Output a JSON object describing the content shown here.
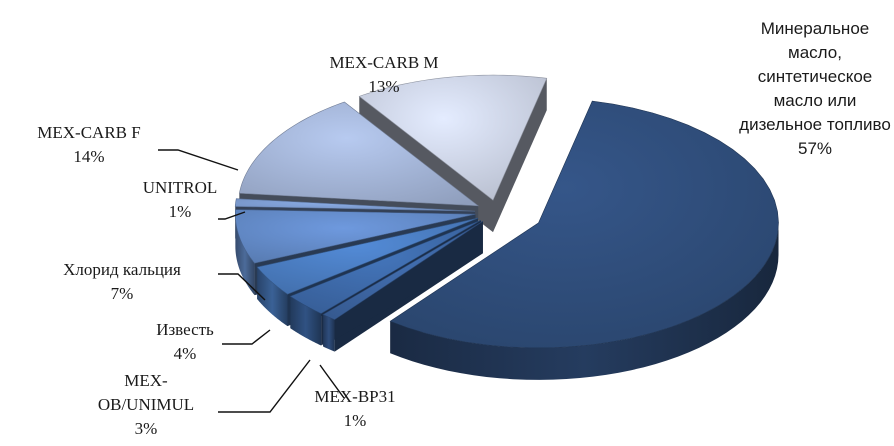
{
  "chart_data": {
    "type": "pie",
    "title": "",
    "categories": [
      "Минеральное масло, синтетическое масло или дизельное топливо",
      "MEX-BP31",
      "MEX-OB/UNIMUL",
      "Известь",
      "Хлорид кальция",
      "UNITROL",
      "MEX-CARB F",
      "MEX-CARB M"
    ],
    "values": [
      57,
      1,
      3,
      4,
      7,
      1,
      14,
      13
    ],
    "value_labels": [
      "57%",
      "1%",
      "3%",
      "4%",
      "7%",
      "1%",
      "14%",
      "13%"
    ],
    "label_lines": [
      [
        "Минеральное",
        "масло,",
        "синтетическое",
        "масло или",
        "дизельное топливо"
      ],
      [
        "MEX-BP31"
      ],
      [
        "MEX-",
        "OB/UNIMUL"
      ],
      [
        "Известь"
      ],
      [
        "Хлорид кальция"
      ],
      [
        "UNITROL"
      ],
      [
        "MEX-CARB  F"
      ],
      [
        "MEX-CARB  M"
      ]
    ],
    "colors": [
      "#2f4d7a",
      "#3c64a0",
      "#3d69a8",
      "#4a7cc0",
      "#6289c6",
      "#7c9bcf",
      "#a3b4d6",
      "#ccd3e6"
    ],
    "exploded": true,
    "three_d": true,
    "legend": "none"
  }
}
